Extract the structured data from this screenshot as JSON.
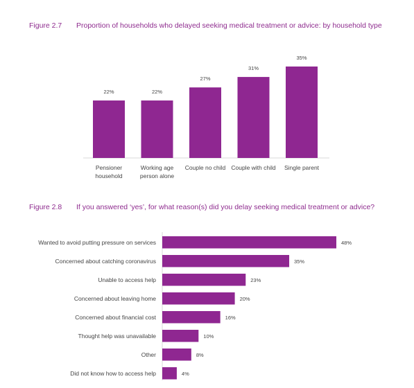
{
  "figure1": {
    "number": "Figure 2.7",
    "title": "Proportion of households who delayed seeking medical treatment or advice: by household type"
  },
  "figure2": {
    "number": "Figure 2.8",
    "title": "If you answered ‘yes’, for what reason(s) did you delay seeking medical treatment or advice?"
  },
  "colors": {
    "bar": "#8f2791"
  },
  "chart_data": [
    {
      "type": "bar",
      "orientation": "vertical",
      "categories": [
        [
          "Pensioner",
          "household"
        ],
        [
          "Working age",
          "person alone"
        ],
        [
          "Couple no child"
        ],
        [
          "Couple with child"
        ],
        [
          "Single parent"
        ]
      ],
      "values": [
        22,
        22,
        27,
        31,
        35
      ],
      "value_labels": [
        "22%",
        "22%",
        "27%",
        "31%",
        "35%"
      ],
      "ylim": [
        0,
        40
      ],
      "grid": false,
      "legend": false
    },
    {
      "type": "bar",
      "orientation": "horizontal",
      "categories": [
        "Wanted to avoid putting pressure on services",
        "Concerned about catching coronavirus",
        "Unable to access help",
        "Concerned about leaving home",
        "Concerned about financial cost",
        "Thought help was unavailable",
        "Other",
        "Did not know how to access help"
      ],
      "values": [
        48,
        35,
        23,
        20,
        16,
        10,
        8,
        4
      ],
      "value_labels": [
        "48%",
        "35%",
        "23%",
        "20%",
        "16%",
        "10%",
        "8%",
        "4%"
      ],
      "xlim": [
        0,
        50
      ],
      "grid": false,
      "legend": false
    }
  ]
}
